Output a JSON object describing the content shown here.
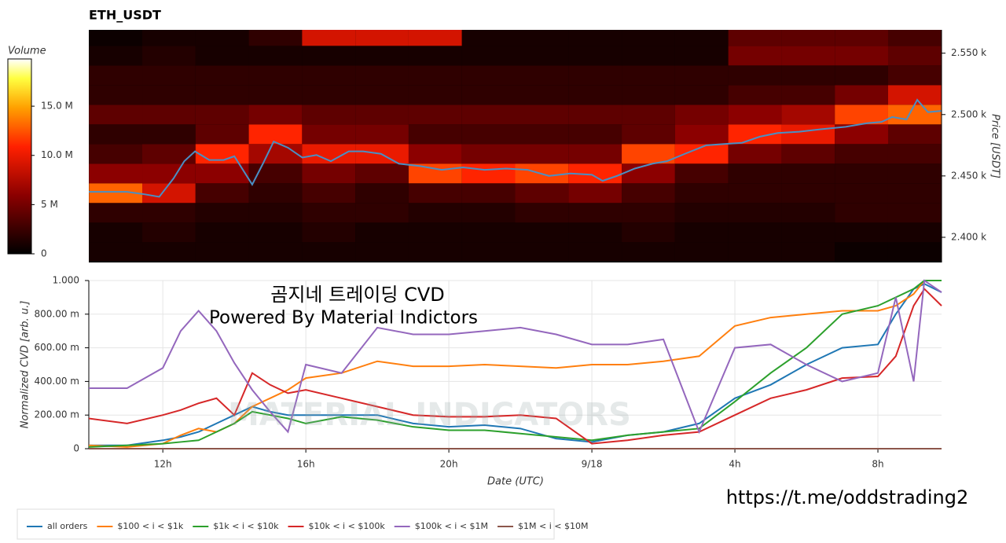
{
  "chart_data": [
    {
      "type": "heatmap",
      "title": "ETH_USDT",
      "y_label": "Price [USDT]",
      "x": [
        10.68,
        12.17,
        13.66,
        15.15,
        16.64,
        18.13,
        19.62,
        21.11,
        22.6,
        24.09,
        25.58,
        27.07,
        28.56,
        30.05,
        31.54,
        33.03
      ],
      "y": [
        2388,
        2404,
        2420,
        2436,
        2452,
        2468,
        2484,
        2500,
        2516,
        2532,
        2548,
        2564
      ],
      "values": [
        [
          1,
          1,
          1,
          1,
          1,
          1,
          1,
          1,
          1,
          1,
          1,
          1,
          1,
          1,
          0.5,
          0.5
        ],
        [
          1,
          1.5,
          1,
          1,
          1.5,
          1,
          1,
          1,
          1,
          1,
          1.5,
          1,
          1,
          1,
          1,
          1
        ],
        [
          2,
          2,
          1.5,
          1.5,
          2,
          2,
          1.5,
          1.5,
          2,
          2,
          2,
          1.5,
          1.5,
          1.5,
          2,
          2
        ],
        [
          13,
          9,
          3,
          2,
          3,
          2,
          3,
          3,
          4,
          5,
          3,
          2,
          2,
          2,
          2,
          2
        ],
        [
          6,
          6,
          6,
          3,
          5,
          4,
          12,
          11,
          12,
          11,
          6,
          3,
          2,
          2,
          2,
          2
        ],
        [
          3,
          4,
          11,
          7,
          10,
          10,
          6,
          5,
          5,
          5,
          12,
          11,
          5,
          4,
          3,
          3
        ],
        [
          2,
          2,
          4,
          11,
          5,
          5,
          3,
          3,
          3,
          3,
          4,
          6,
          11,
          10,
          6,
          4
        ],
        [
          4,
          4,
          4,
          5,
          4,
          4,
          4,
          4,
          4,
          4,
          4,
          5,
          6,
          7,
          12,
          13
        ],
        [
          2,
          2,
          2,
          2,
          2,
          2,
          2,
          2,
          2,
          2,
          2,
          2,
          3,
          3,
          5,
          9
        ],
        [
          2,
          2,
          2,
          2,
          2,
          2,
          2,
          2,
          2,
          2,
          2,
          2,
          2,
          2,
          2,
          3
        ],
        [
          1,
          1.5,
          1,
          1,
          1,
          1,
          1,
          1,
          1,
          1,
          1,
          1,
          5,
          5,
          5,
          4
        ],
        [
          0.5,
          1,
          1,
          2,
          9,
          9,
          9,
          1,
          1,
          1,
          1,
          1,
          4,
          4,
          4,
          3
        ]
      ],
      "xlim": [
        9.93,
        33.78
      ],
      "ylim": [
        2379.5,
        2569
      ],
      "yticks": [
        {
          "value": 2400,
          "label": "2.400 k"
        },
        {
          "value": 2450,
          "label": "2.450 k"
        },
        {
          "value": 2500,
          "label": "2.500 k"
        },
        {
          "value": 2550,
          "label": "2.550 k"
        }
      ],
      "colorbar": {
        "title": "Volume",
        "lim": [
          0,
          19.8
        ],
        "ticks": [
          0,
          {
            "value": 5,
            "label": "5 M"
          },
          {
            "value": 10,
            "label": "10.0 M"
          },
          {
            "value": 15,
            "label": "15.0 M"
          }
        ]
      },
      "price_line": {
        "color": "#4a8fc4",
        "x": [
          9.93,
          10.5,
          11,
          11.5,
          11.9,
          12.3,
          12.6,
          12.9,
          13.3,
          13.7,
          14.0,
          14.5,
          14.8,
          15.1,
          15.5,
          15.9,
          16.3,
          16.7,
          17.2,
          17.6,
          18.1,
          18.6,
          19.2,
          19.8,
          20.4,
          21.0,
          21.6,
          22.2,
          22.8,
          23.4,
          24,
          24.3,
          24.7,
          25.2,
          25.7,
          26.1,
          26.6,
          27.2,
          27.7,
          28.2,
          28.7,
          29.2,
          29.8,
          30.4,
          31.1,
          31.7,
          32.1,
          32.4,
          32.8,
          33.1,
          33.4,
          33.78
        ],
        "values": [
          2437,
          2437,
          2437,
          2435,
          2433,
          2448,
          2462,
          2470,
          2463,
          2463,
          2466,
          2443,
          2460,
          2478,
          2473,
          2465,
          2467,
          2462,
          2470,
          2470,
          2468,
          2460,
          2458,
          2455,
          2457,
          2455,
          2456,
          2455,
          2450,
          2452,
          2451,
          2446,
          2450,
          2456,
          2460,
          2462,
          2468,
          2475,
          2476,
          2477,
          2482,
          2485,
          2486,
          2488,
          2490,
          2493,
          2494,
          2498,
          2496,
          2512,
          2502,
          2503
        ]
      }
    },
    {
      "type": "line",
      "x_label": "Date (UTC)",
      "y_label": "Normalized CVD [arb. u.]",
      "annotations": [
        "곰지네 트레이딩 CVD",
        "Powered By Material Indictors",
        "https://t.me/oddstrading2",
        "MATERIAL INDICATORS"
      ],
      "x": [
        9.93,
        11,
        12,
        12.5,
        13,
        13.5,
        14,
        14.5,
        15,
        15.5,
        16,
        17,
        18,
        19,
        20,
        21,
        22,
        23,
        24,
        25,
        26,
        27,
        28,
        29,
        30,
        31,
        32,
        32.5,
        33,
        33.3,
        33.78
      ],
      "xlim": [
        9.93,
        33.78
      ],
      "ylim": [
        0,
        1.0
      ],
      "xticks": [
        {
          "value": 12,
          "label": "12h"
        },
        {
          "value": 16,
          "label": "16h"
        },
        {
          "value": 20,
          "label": "20h"
        },
        {
          "value": 24,
          "label": "9/18"
        },
        {
          "value": 28,
          "label": "4h"
        },
        {
          "value": 32,
          "label": "8h"
        }
      ],
      "yticks": [
        0,
        {
          "value": 0.2,
          "label": "200.00 m"
        },
        {
          "value": 0.4,
          "label": "400.00 m"
        },
        {
          "value": 0.6,
          "label": "600.00 m"
        },
        {
          "value": 0.8,
          "label": "800.00 m"
        },
        {
          "value": 1.0,
          "label": "1.000"
        }
      ],
      "grid": true,
      "series": [
        {
          "name": "all orders",
          "color": "#1f77b4",
          "values": [
            0.02,
            0.02,
            0.05,
            0.07,
            0.1,
            0.15,
            0.2,
            0.25,
            0.22,
            0.2,
            0.2,
            0.2,
            0.2,
            0.15,
            0.13,
            0.14,
            0.12,
            0.06,
            0.04,
            0.08,
            0.1,
            0.15,
            0.3,
            0.38,
            0.5,
            0.6,
            0.62,
            0.8,
            0.95,
            0.98,
            0.93
          ]
        },
        {
          "name": "$100 < i < $1k",
          "color": "#ff7f0e",
          "values": [
            0.02,
            0.01,
            0.03,
            0.08,
            0.12,
            0.1,
            0.15,
            0.25,
            0.3,
            0.35,
            0.42,
            0.45,
            0.52,
            0.49,
            0.49,
            0.5,
            0.49,
            0.48,
            0.5,
            0.5,
            0.52,
            0.55,
            0.73,
            0.78,
            0.8,
            0.82,
            0.82,
            0.85,
            0.92,
            1.0,
            1.0
          ]
        },
        {
          "name": "$1k < i < $10k",
          "color": "#2ca02c",
          "values": [
            0.01,
            0.02,
            0.03,
            0.04,
            0.05,
            0.1,
            0.15,
            0.22,
            0.2,
            0.18,
            0.15,
            0.19,
            0.17,
            0.13,
            0.11,
            0.11,
            0.09,
            0.07,
            0.05,
            0.08,
            0.1,
            0.12,
            0.28,
            0.45,
            0.6,
            0.8,
            0.85,
            0.9,
            0.95,
            1.0,
            1.0
          ]
        },
        {
          "name": "$10k < i < $100k",
          "color": "#d62728",
          "values": [
            0.18,
            0.15,
            0.2,
            0.23,
            0.27,
            0.3,
            0.2,
            0.45,
            0.38,
            0.33,
            0.35,
            0.3,
            0.25,
            0.2,
            0.19,
            0.19,
            0.2,
            0.18,
            0.03,
            0.05,
            0.08,
            0.1,
            0.2,
            0.3,
            0.35,
            0.42,
            0.43,
            0.55,
            0.85,
            0.95,
            0.85
          ]
        },
        {
          "name": "$100k < i < $1M",
          "color": "#9467bd",
          "values": [
            0.36,
            0.36,
            0.48,
            0.7,
            0.82,
            0.7,
            0.51,
            0.35,
            0.22,
            0.1,
            0.5,
            0.45,
            0.72,
            0.68,
            0.68,
            0.7,
            0.72,
            0.68,
            0.62,
            0.62,
            0.65,
            0.1,
            0.6,
            0.62,
            0.5,
            0.4,
            0.45,
            0.9,
            0.4,
            1.0,
            0.93
          ]
        },
        {
          "name": "$1M < i < $10M",
          "color": "#8c564b",
          "values": [
            0,
            0,
            0,
            0,
            0,
            0,
            0,
            0,
            0,
            0,
            0,
            0,
            0,
            0,
            0,
            0,
            0,
            0,
            0,
            0,
            0,
            0,
            0,
            0,
            0,
            0,
            0,
            0,
            0,
            0,
            0
          ]
        }
      ]
    }
  ]
}
